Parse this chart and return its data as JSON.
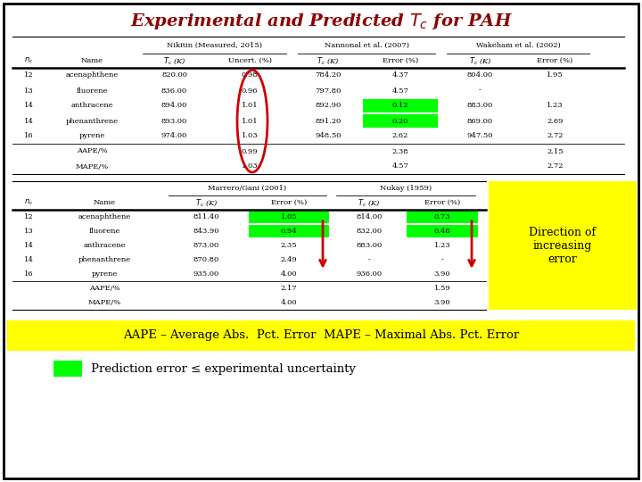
{
  "title": "Experimental and Predicted $\\mathit{T_c}$ for PAH",
  "title_color": "#8B0000",
  "bg_color": "#FFFFFF",
  "border_color": "#000000",
  "green_color": "#00FF00",
  "yellow_color": "#FFFF00",
  "red_arrow_color": "#CC0000",
  "oval_color": "#CC0000",
  "table1_data": [
    [
      "12",
      "acenaphthene",
      "820.00",
      "0.98",
      "784.20",
      "4.37",
      "804.00",
      "1.95"
    ],
    [
      "13",
      "fluorene",
      "836.00",
      "0.96",
      "797.80",
      "4.57",
      "-",
      ""
    ],
    [
      "14",
      "anthracene",
      "894.00",
      "1.01",
      "892.90",
      "0.12",
      "883.00",
      "1.23"
    ],
    [
      "14",
      "phenanthrene",
      "893.00",
      "1.01",
      "891.20",
      "0.20",
      "869.00",
      "2.69"
    ],
    [
      "16",
      "pyrene",
      "974.00",
      "1.03",
      "948.50",
      "2.62",
      "947.50",
      "2.72"
    ]
  ],
  "table1_aape": [
    "",
    "AAPE/%",
    "",
    "0.99",
    "",
    "2.38",
    "",
    "2.15"
  ],
  "table1_mape": [
    "",
    "MAPE/%",
    "",
    "1.03",
    "",
    "4.57",
    "",
    "2.72"
  ],
  "table1_green_cells": [
    [
      2,
      5
    ],
    [
      3,
      5
    ]
  ],
  "table2_data": [
    [
      "12",
      "acenaphthene",
      "811.40",
      "1.05",
      "814.00",
      "0.73"
    ],
    [
      "13",
      "fluorene",
      "843.90",
      "0.94",
      "832.00",
      "0.48"
    ],
    [
      "14",
      "anthracene",
      "873.00",
      "2.35",
      "883.00",
      "1.23"
    ],
    [
      "14",
      "phenanthrene",
      "870.80",
      "2.49",
      "-",
      "-"
    ],
    [
      "16",
      "pyrene",
      "935.00",
      "4.00",
      "936.00",
      "3.90"
    ]
  ],
  "table2_aape": [
    "",
    "AAPE/%",
    "",
    "2.17",
    "",
    "1.59"
  ],
  "table2_mape": [
    "",
    "MAPE/%",
    "",
    "4.00",
    "",
    "3.90"
  ],
  "table2_green_cells": [
    [
      0,
      3
    ],
    [
      1,
      3
    ],
    [
      0,
      5
    ],
    [
      1,
      5
    ]
  ],
  "footnote1": "AAPE – Average Abs.  Pct. Error  MAPE – Maximal Abs. Pct. Error",
  "footnote2": "Prediction error ≤ experimental uncertainty",
  "direction_text": "Direction of\nincreasing\nerror"
}
